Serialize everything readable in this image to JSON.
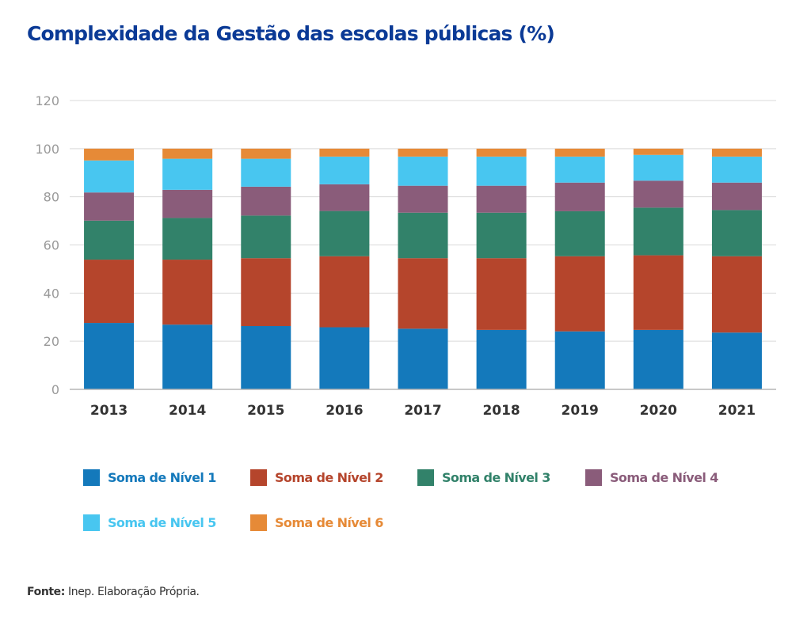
{
  "chart_data": {
    "type": "bar",
    "stacked": true,
    "title": "Complexidade da Gestão das escolas públicas (%)",
    "xlabel": "",
    "ylabel": "",
    "ylim": [
      0,
      120
    ],
    "yticks": [
      0,
      20,
      40,
      60,
      80,
      100,
      120
    ],
    "grid": true,
    "legend_position": "bottom",
    "categories": [
      "2013",
      "2014",
      "2015",
      "2016",
      "2017",
      "2018",
      "2019",
      "2020",
      "2021"
    ],
    "series": [
      {
        "name": "Soma de Nível 1",
        "color": "#1479BB",
        "values": [
          27.6,
          26.9,
          26.3,
          25.8,
          25.2,
          24.7,
          24.1,
          24.7,
          23.6
        ]
      },
      {
        "name": "Soma de Nível 2",
        "color": "#B5452C",
        "values": [
          26.3,
          27.0,
          28.2,
          29.5,
          29.3,
          29.8,
          31.2,
          31.0,
          31.7
        ]
      },
      {
        "name": "Soma de Nível 3",
        "color": "#32826A",
        "values": [
          16.2,
          17.3,
          17.7,
          18.8,
          18.9,
          18.9,
          18.7,
          19.8,
          19.2
        ]
      },
      {
        "name": "Soma de Nível 4",
        "color": "#8A5C7A",
        "values": [
          11.7,
          11.7,
          12.0,
          11.1,
          11.2,
          11.2,
          11.9,
          11.2,
          11.4
        ]
      },
      {
        "name": "Soma de Nível 5",
        "color": "#48C6F0",
        "values": [
          13.3,
          12.9,
          11.6,
          11.5,
          12.1,
          12.1,
          10.8,
          10.7,
          10.8
        ]
      },
      {
        "name": "Soma de Nível 6",
        "color": "#E68A37",
        "values": [
          4.9,
          4.2,
          4.2,
          3.3,
          3.3,
          3.3,
          3.3,
          2.6,
          3.3
        ]
      }
    ]
  },
  "header": {
    "title": "Complexidade da Gestão das escolas públicas (%)",
    "title_color": "#0B3A96"
  },
  "footer": {
    "source_label": "Fonte:",
    "source_text": " Inep. Elaboração Própria."
  }
}
